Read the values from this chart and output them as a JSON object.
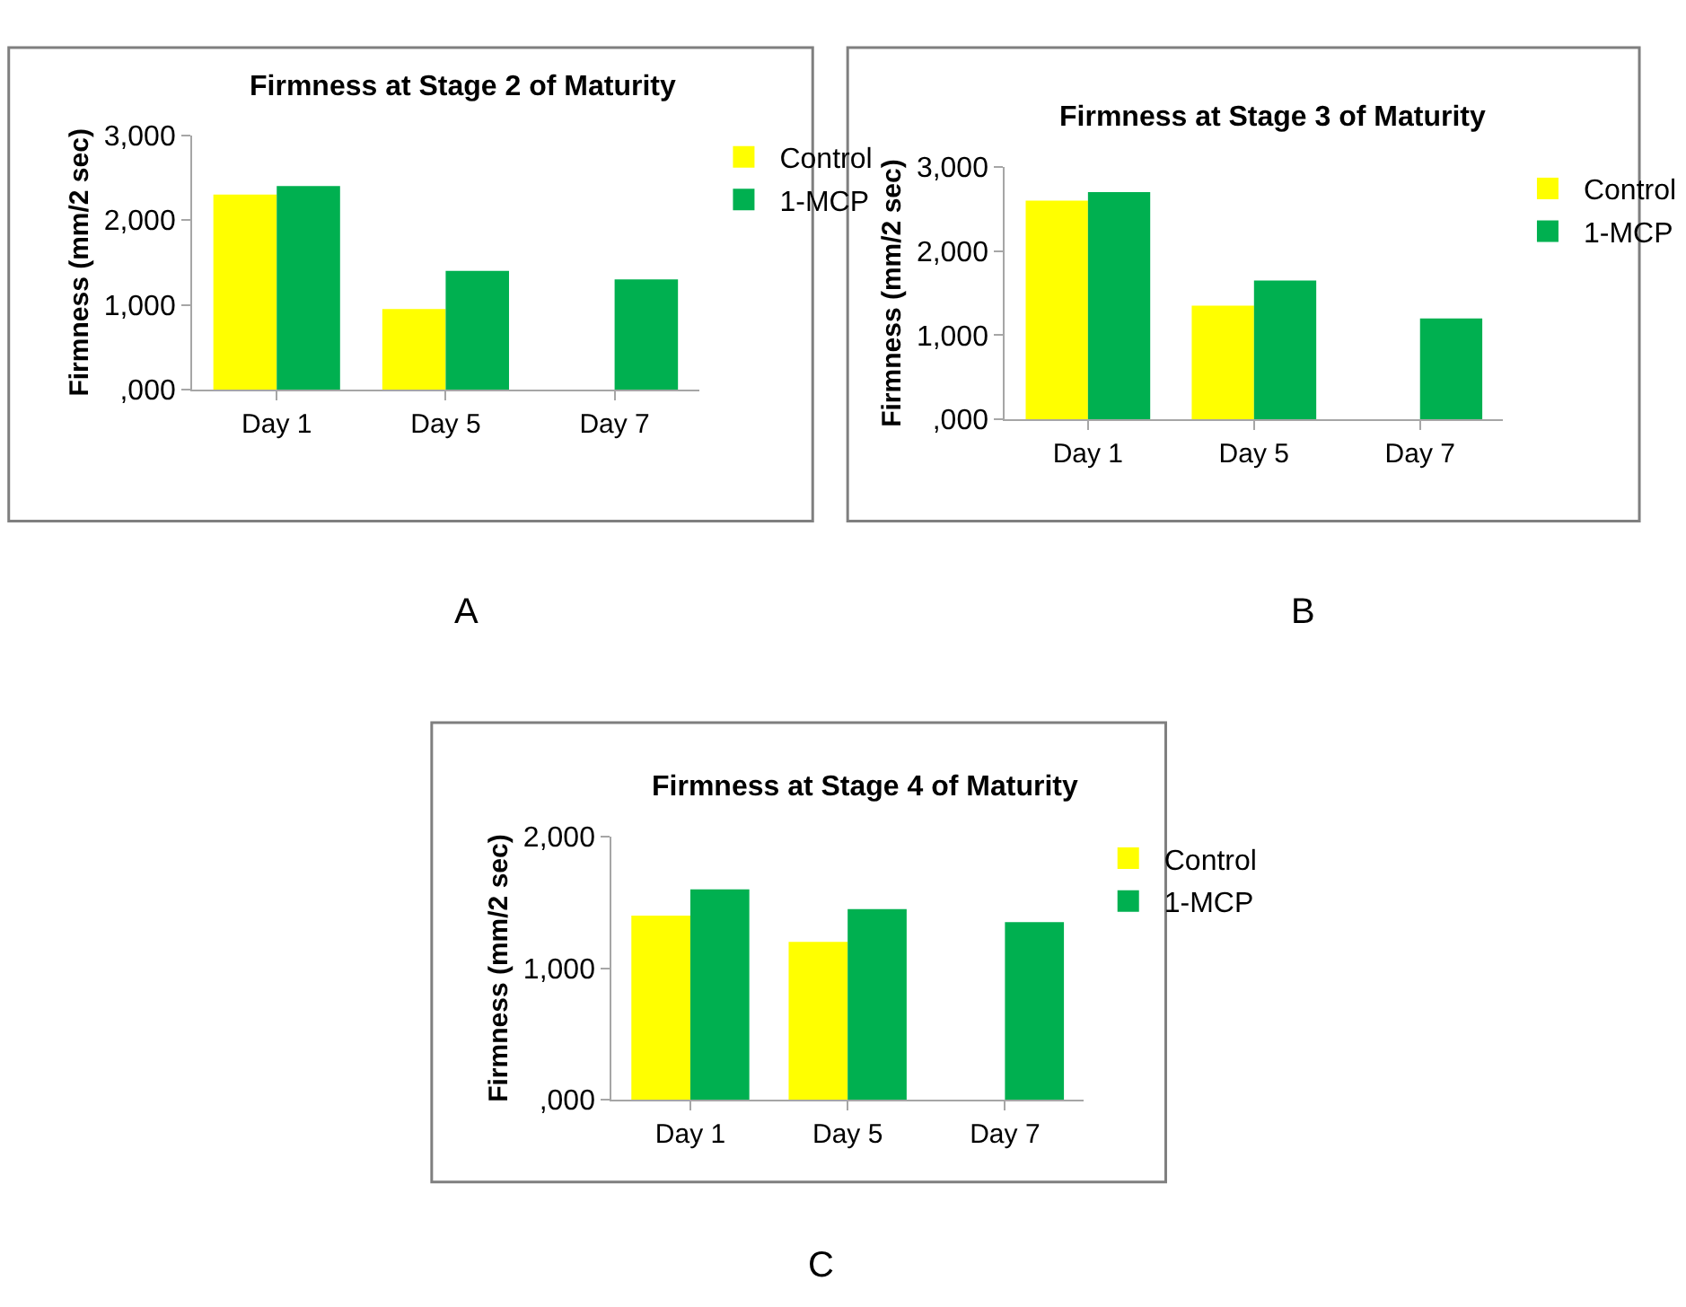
{
  "chart_data": [
    {
      "type": "bar",
      "title": "Firmness at Stage 2 of Maturity",
      "ylabel": "Firmness (mm/2 sec)",
      "categories": [
        "Day 1",
        "Day 5",
        "Day 7"
      ],
      "series": [
        {
          "name": "Control",
          "color": "#ffff00",
          "values": [
            2300,
            950,
            0
          ]
        },
        {
          "name": "1-MCP",
          "color": "#00b050",
          "values": [
            2400,
            1400,
            1300
          ]
        }
      ],
      "ylim": [
        0,
        3000
      ],
      "yticks": [
        {
          "value": 0,
          "label": ",000"
        },
        {
          "value": 1000,
          "label": "1,000"
        },
        {
          "value": 2000,
          "label": "2,000"
        },
        {
          "value": 3000,
          "label": "3,000"
        }
      ],
      "legend": "right",
      "annotations": [
        "A"
      ]
    },
    {
      "type": "bar",
      "title": "Firmness at Stage 3 of Maturity",
      "ylabel": "Firmness (mm/2 sec)",
      "categories": [
        "Day 1",
        "Day 5",
        "Day 7"
      ],
      "series": [
        {
          "name": "Control",
          "color": "#ffff00",
          "values": [
            2600,
            1350,
            0
          ]
        },
        {
          "name": "1-MCP",
          "color": "#00b050",
          "values": [
            2700,
            1650,
            1200
          ]
        }
      ],
      "ylim": [
        0,
        3000
      ],
      "yticks": [
        {
          "value": 0,
          "label": ",000"
        },
        {
          "value": 1000,
          "label": "1,000"
        },
        {
          "value": 2000,
          "label": "2,000"
        },
        {
          "value": 3000,
          "label": "3,000"
        }
      ],
      "legend": "right",
      "annotations": [
        "B"
      ]
    },
    {
      "type": "bar",
      "title": "Firmness at Stage 4 of Maturity",
      "ylabel": "Firmness (mm/2 sec)",
      "categories": [
        "Day 1",
        "Day 5",
        "Day 7"
      ],
      "series": [
        {
          "name": "Control",
          "color": "#ffff00",
          "values": [
            1400,
            1200,
            0
          ]
        },
        {
          "name": "1-MCP",
          "color": "#00b050",
          "values": [
            1600,
            1450,
            1350
          ]
        }
      ],
      "ylim": [
        0,
        2000
      ],
      "yticks": [
        {
          "value": 0,
          "label": ",000"
        },
        {
          "value": 1000,
          "label": "1,000"
        },
        {
          "value": 2000,
          "label": "2,000"
        }
      ],
      "legend": "right",
      "annotations": [
        "C"
      ]
    }
  ]
}
